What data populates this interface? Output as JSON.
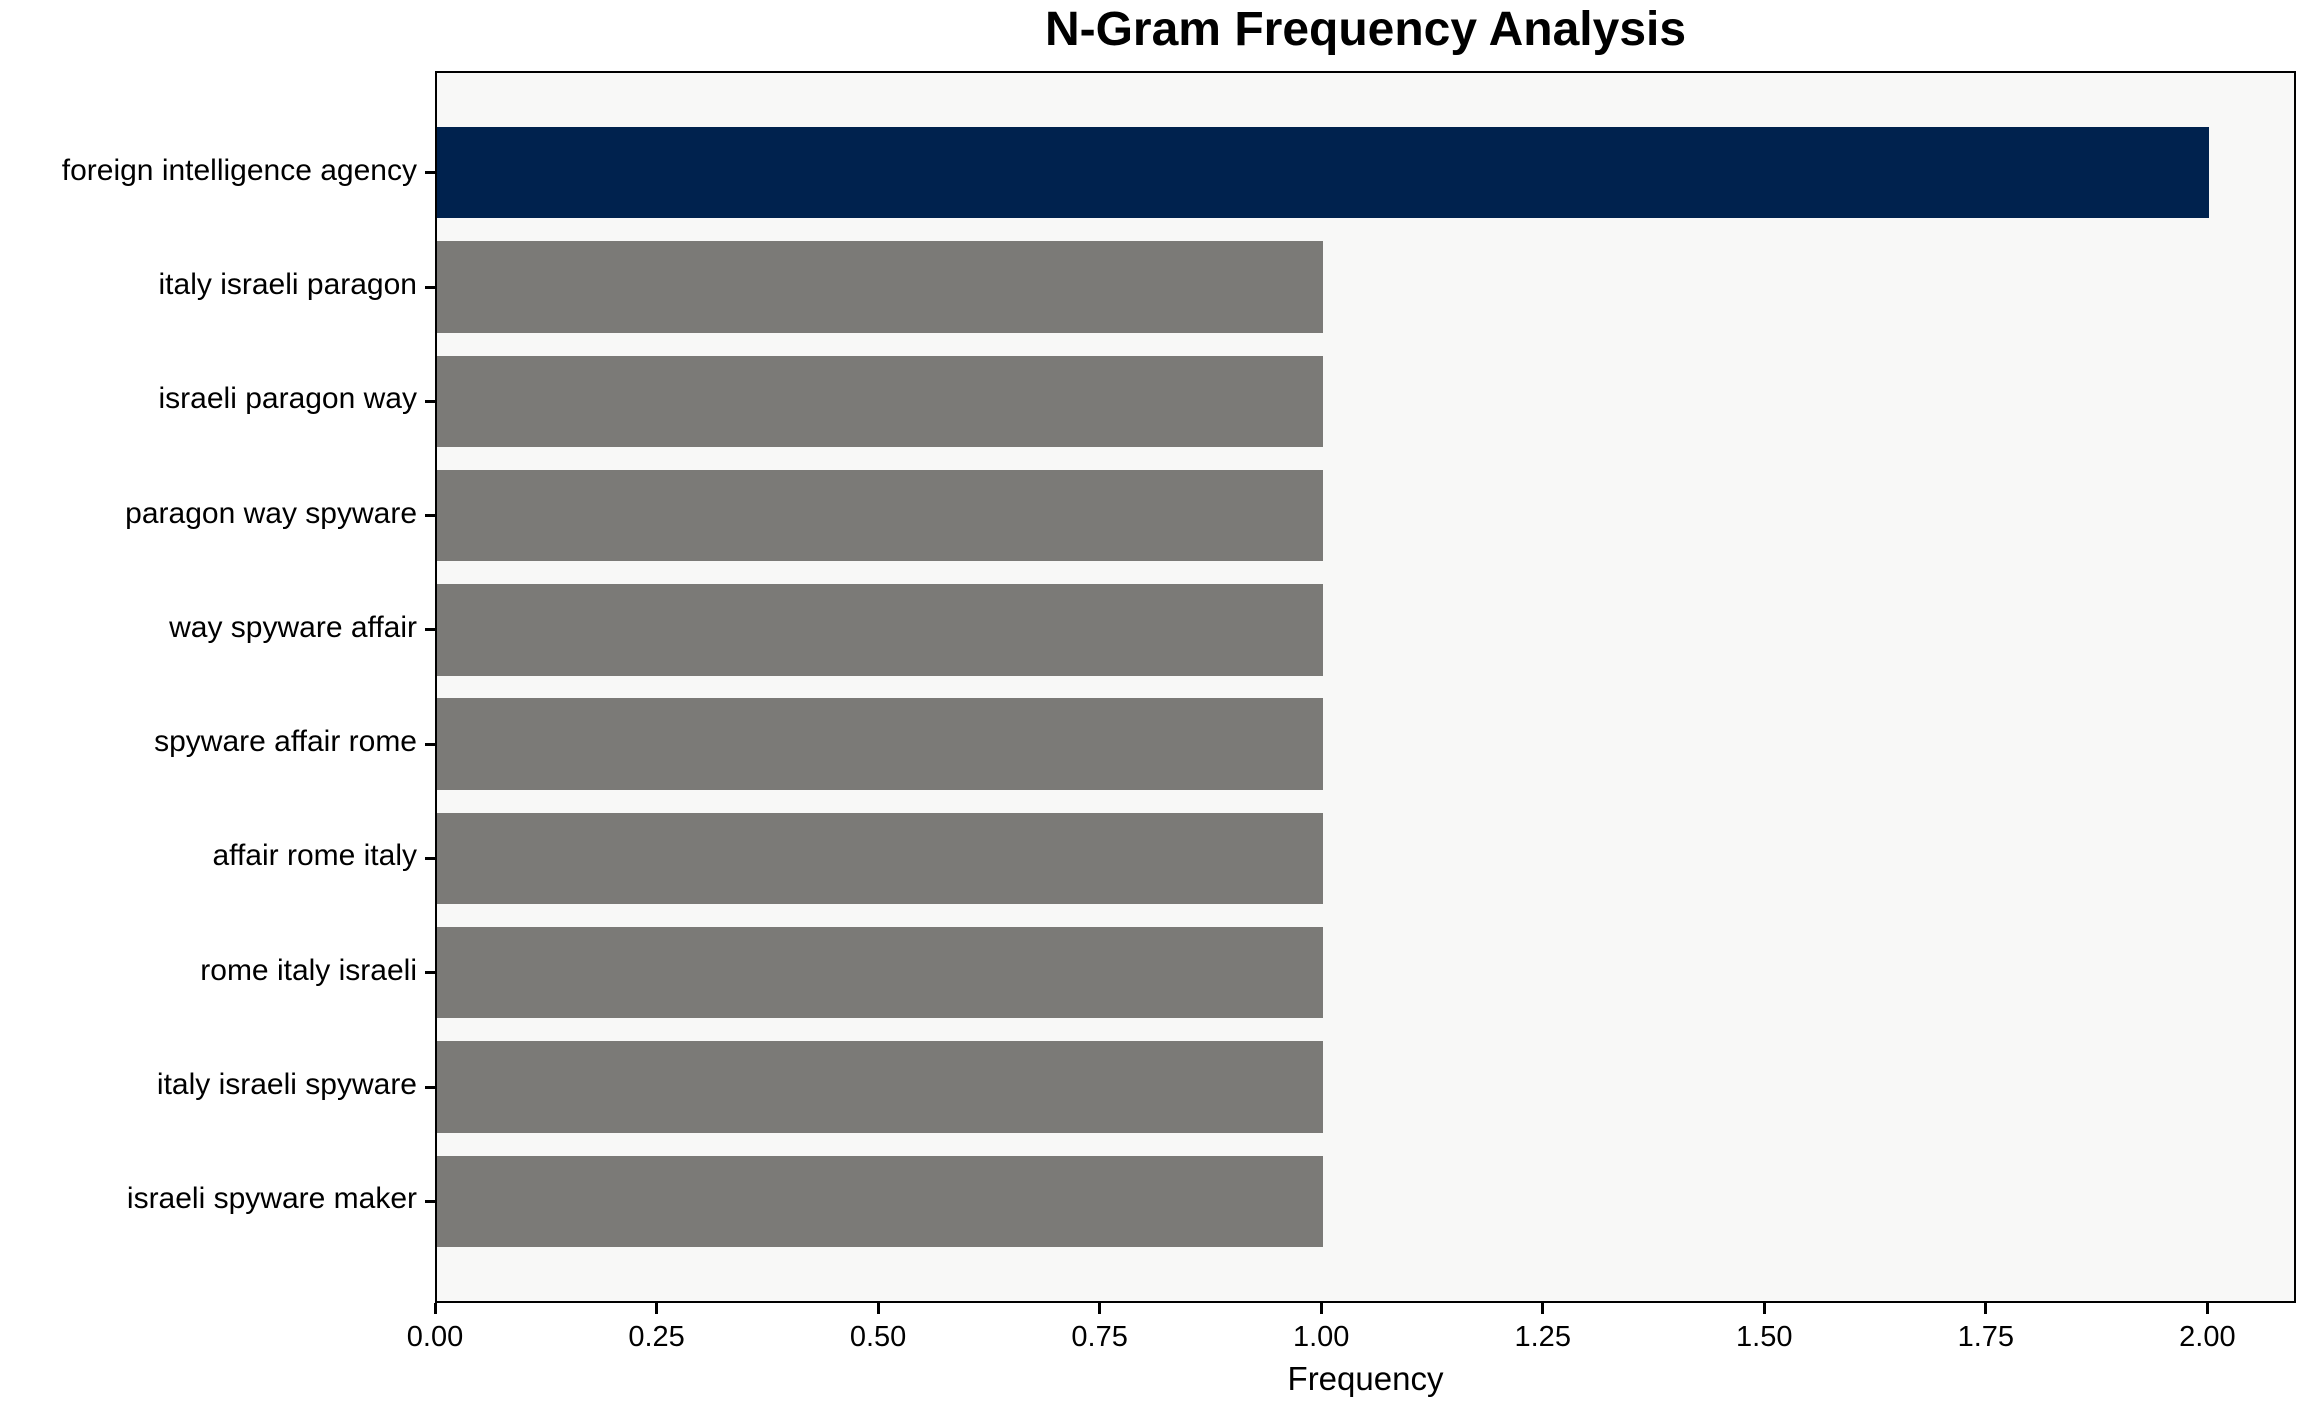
{
  "title": "N-Gram Frequency Analysis",
  "chart_data": {
    "type": "bar",
    "orientation": "horizontal",
    "title": "N-Gram Frequency Analysis",
    "xlabel": "Frequency",
    "ylabel": "",
    "categories": [
      "foreign intelligence agency",
      "italy israeli paragon",
      "israeli paragon way",
      "paragon way spyware",
      "way spyware affair",
      "spyware affair rome",
      "affair rome italy",
      "rome italy israeli",
      "italy israeli spyware",
      "israeli spyware maker"
    ],
    "values": [
      2.0,
      1.0,
      1.0,
      1.0,
      1.0,
      1.0,
      1.0,
      1.0,
      1.0,
      1.0
    ],
    "highlight_index": 0,
    "x_tick_labels": [
      "0.00",
      "0.25",
      "0.50",
      "0.75",
      "1.00",
      "1.25",
      "1.50",
      "1.75",
      "2.00"
    ],
    "x_tick_values": [
      0,
      0.25,
      0.5,
      0.75,
      1.0,
      1.25,
      1.5,
      1.75,
      2.0
    ],
    "xlim": [
      0,
      2.1
    ],
    "grid": false,
    "legend": null,
    "colors": {
      "highlight_bar": "#00224e",
      "default_bar": "#7b7a77",
      "plot_background": "#f8f8f7",
      "figure_background": "#ffffff",
      "spine": "#000000",
      "text": "#000000"
    }
  }
}
